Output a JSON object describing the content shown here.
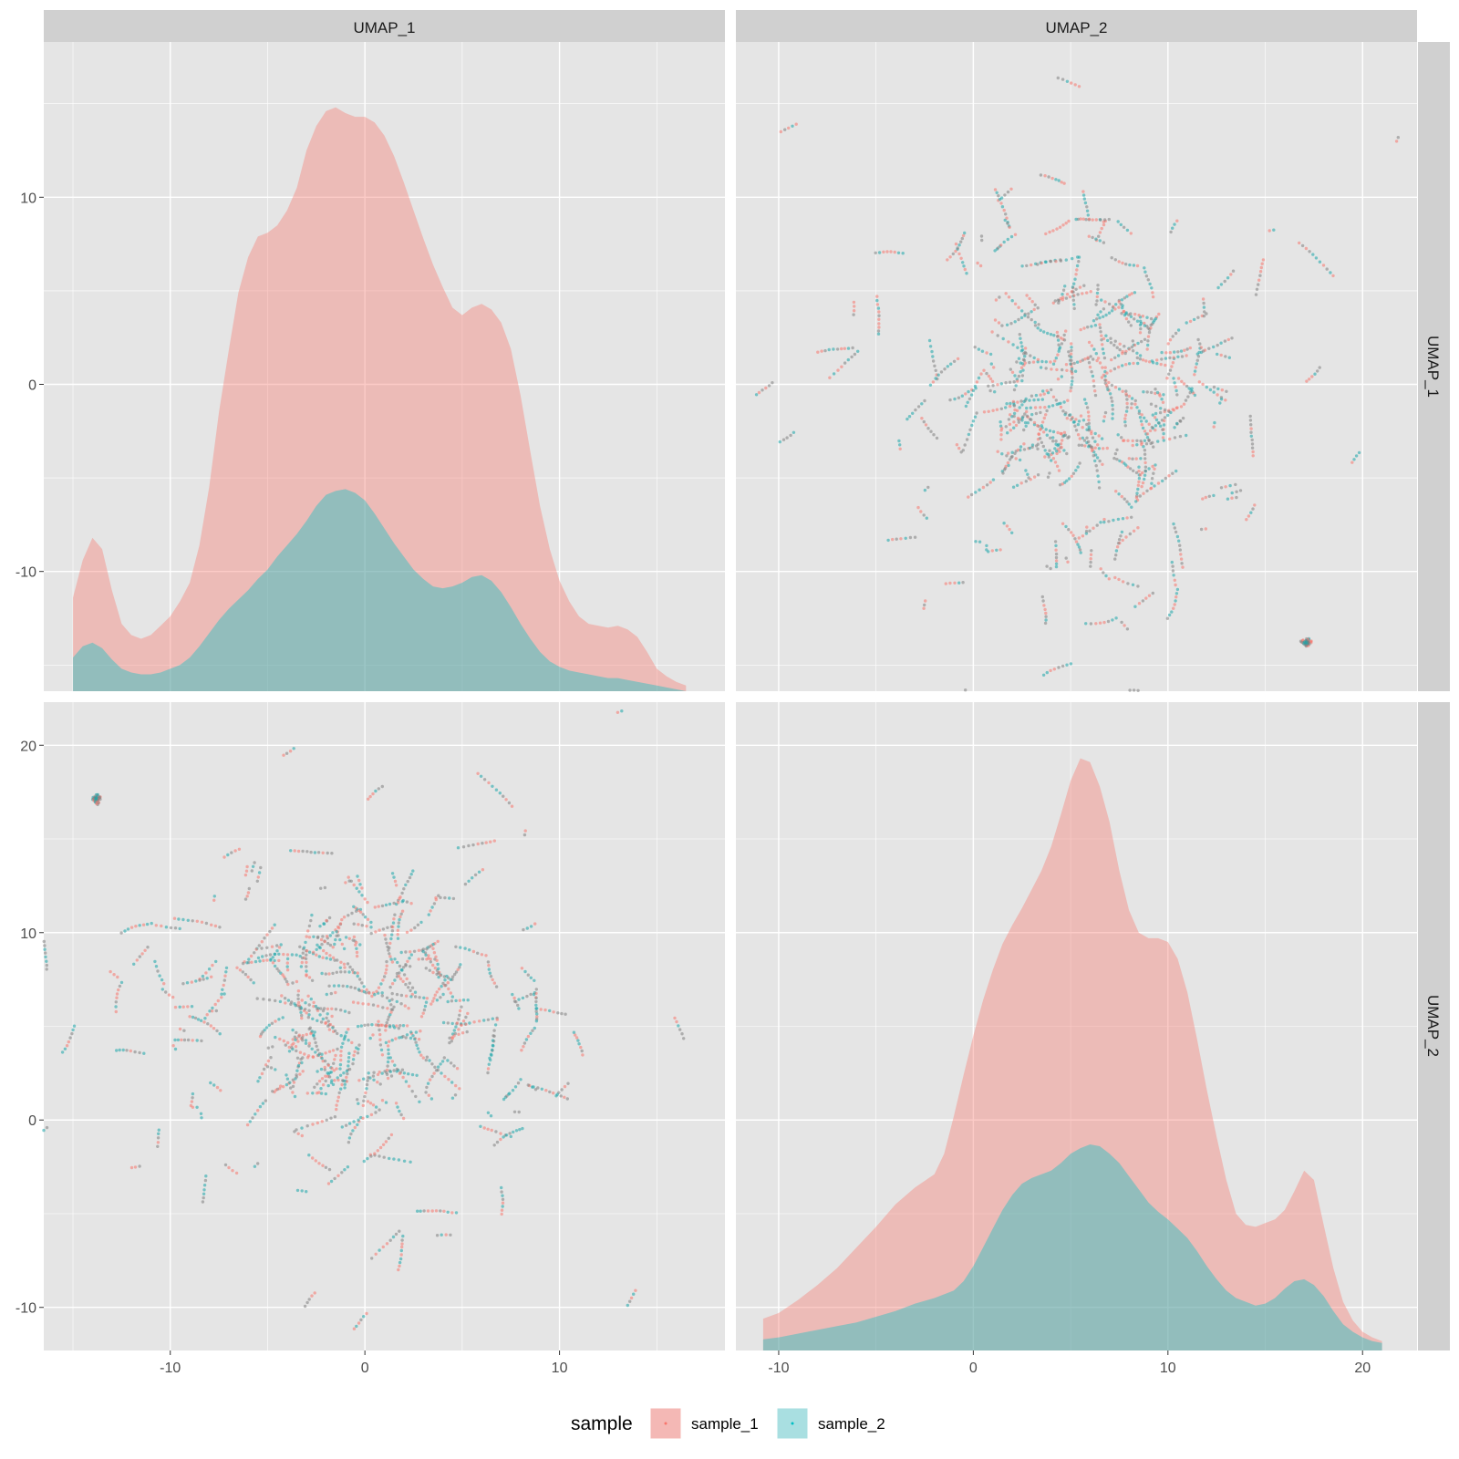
{
  "colors": {
    "panel_bg": "#e5e5e5",
    "grid": "#ffffff",
    "strip_bg": "#d0d0d0",
    "sample_1": "#f8766d",
    "sample_2": "#00bfc4"
  },
  "legend": {
    "title": "sample",
    "entries": [
      "sample_1",
      "sample_2"
    ],
    "position": "bottom"
  },
  "chart_data": [
    {
      "type": "area",
      "panel": "UMAP_1 x UMAP_1 (density)",
      "column_label": "UMAP_1",
      "row_label": "UMAP_1",
      "xlim": [
        -16.5,
        18.5
      ],
      "ylim": [
        -16.4,
        18.3
      ],
      "y_ticks": [
        -10,
        0,
        10
      ],
      "stacked": true,
      "series": [
        {
          "name": "sample_1",
          "x": [
            -15,
            -14.5,
            -14,
            -13.5,
            -13,
            -12.5,
            -12,
            -11.5,
            -11,
            -10.5,
            -10,
            -9.5,
            -9,
            -8.5,
            -8,
            -7.5,
            -7,
            -6.5,
            -6,
            -5.5,
            -5,
            -4.5,
            -4,
            -3.5,
            -3,
            -2.5,
            -2,
            -1.5,
            -1,
            -0.5,
            0,
            0.5,
            1,
            1.5,
            2,
            2.5,
            3,
            3.5,
            4,
            4.5,
            5,
            5.5,
            6,
            6.5,
            7,
            7.5,
            8,
            8.5,
            9,
            9.5,
            10,
            10.5,
            11,
            11.5,
            12,
            12.5,
            13,
            13.5,
            14,
            14.5,
            15,
            15.5,
            16,
            16.5
          ],
          "top": [
            -11.4,
            -9.4,
            -8.2,
            -8.8,
            -11.0,
            -12.8,
            -13.4,
            -13.6,
            -13.4,
            -12.9,
            -12.4,
            -11.6,
            -10.6,
            -8.6,
            -5.5,
            -1.5,
            1.8,
            4.9,
            6.8,
            7.9,
            8.1,
            8.5,
            9.3,
            10.5,
            12.5,
            13.8,
            14.6,
            14.8,
            14.5,
            14.3,
            14.3,
            14.0,
            13.3,
            12.2,
            10.8,
            9.3,
            7.8,
            6.4,
            5.2,
            4.1,
            3.7,
            4.1,
            4.3,
            4.0,
            3.3,
            1.9,
            -0.6,
            -3.6,
            -6.5,
            -8.8,
            -10.5,
            -11.6,
            -12.4,
            -12.8,
            -12.9,
            -13.0,
            -12.9,
            -13.1,
            -13.5,
            -14.3,
            -15.2,
            -15.6,
            -15.9,
            -16.1
          ]
        },
        {
          "name": "sample_2",
          "x": [
            -15,
            -14.5,
            -14,
            -13.5,
            -13,
            -12.5,
            -12,
            -11.5,
            -11,
            -10.5,
            -10,
            -9.5,
            -9,
            -8.5,
            -8,
            -7.5,
            -7,
            -6.5,
            -6,
            -5.5,
            -5,
            -4.5,
            -4,
            -3.5,
            -3,
            -2.5,
            -2,
            -1.5,
            -1,
            -0.5,
            0,
            0.5,
            1,
            1.5,
            2,
            2.5,
            3,
            3.5,
            4,
            4.5,
            5,
            5.5,
            6,
            6.5,
            7,
            7.5,
            8,
            8.5,
            9,
            9.5,
            10,
            10.5,
            11,
            11.5,
            12,
            12.5,
            13,
            13.5,
            14,
            14.5,
            15,
            15.5,
            16,
            16.5
          ],
          "top": [
            -14.6,
            -14.0,
            -13.8,
            -14.1,
            -14.7,
            -15.2,
            -15.4,
            -15.5,
            -15.5,
            -15.4,
            -15.2,
            -15.0,
            -14.6,
            -14.0,
            -13.3,
            -12.6,
            -12.0,
            -11.5,
            -11.0,
            -10.4,
            -9.9,
            -9.2,
            -8.6,
            -8.0,
            -7.3,
            -6.5,
            -5.9,
            -5.7,
            -5.6,
            -5.8,
            -6.2,
            -6.9,
            -7.7,
            -8.5,
            -9.2,
            -9.9,
            -10.4,
            -10.8,
            -10.9,
            -10.8,
            -10.6,
            -10.3,
            -10.2,
            -10.5,
            -11.1,
            -11.9,
            -12.8,
            -13.6,
            -14.3,
            -14.8,
            -15.1,
            -15.3,
            -15.4,
            -15.5,
            -15.6,
            -15.7,
            -15.7,
            -15.8,
            -15.9,
            -16.0,
            -16.1,
            -16.2,
            -16.3,
            -16.4
          ]
        }
      ]
    },
    {
      "type": "scatter",
      "panel": "UMAP_2 x UMAP_1",
      "column_label": "UMAP_2",
      "row_label": "UMAP_1",
      "x_variable": "UMAP_2",
      "y_variable": "UMAP_1",
      "xlim": [
        -12.2,
        22.8
      ],
      "ylim": [
        -16.4,
        18.3
      ],
      "cluster": {
        "x": 17.1,
        "y": -13.8
      },
      "approx_points": 1500
    },
    {
      "type": "scatter",
      "panel": "UMAP_1 x UMAP_2",
      "column_label": "UMAP_1",
      "row_label": "UMAP_2",
      "x_variable": "UMAP_1",
      "y_variable": "UMAP_2",
      "xlim": [
        -16.5,
        18.5
      ],
      "ylim": [
        -12.3,
        22.3
      ],
      "y_ticks": [
        -10,
        0,
        10,
        20
      ],
      "x_ticks": [
        -10,
        0,
        10
      ],
      "cluster": {
        "x": -13.8,
        "y": 17.1
      },
      "approx_points": 1500
    },
    {
      "type": "area",
      "panel": "UMAP_2 x UMAP_2 (density)",
      "column_label": "UMAP_2",
      "row_label": "UMAP_2",
      "xlim": [
        -12.2,
        22.8
      ],
      "ylim": [
        -12.3,
        22.3
      ],
      "x_ticks": [
        -10,
        0,
        10,
        20
      ],
      "stacked": true,
      "series": [
        {
          "name": "sample_1",
          "x": [
            -10.8,
            -10,
            -9,
            -8,
            -7,
            -6,
            -5,
            -4,
            -3,
            -2,
            -1.5,
            -1,
            -0.5,
            0,
            0.5,
            1,
            1.5,
            2,
            2.5,
            3,
            3.5,
            4,
            4.5,
            5,
            5.5,
            6,
            6.5,
            7,
            7.5,
            8,
            8.5,
            9,
            9.5,
            10,
            10.5,
            11,
            11.5,
            12,
            12.5,
            13,
            13.5,
            14,
            14.5,
            15,
            15.5,
            16,
            16.5,
            17,
            17.5,
            18,
            18.5,
            19,
            19.5,
            20,
            20.5,
            21
          ],
          "top": [
            -10.6,
            -10.3,
            -9.6,
            -8.8,
            -7.9,
            -6.8,
            -5.7,
            -4.5,
            -3.6,
            -2.9,
            -1.8,
            0.2,
            2.4,
            4.5,
            6.4,
            8.0,
            9.4,
            10.4,
            11.3,
            12.3,
            13.3,
            14.6,
            16.3,
            18.1,
            19.3,
            19.1,
            17.8,
            15.9,
            13.3,
            11.2,
            10.0,
            9.7,
            9.7,
            9.5,
            8.6,
            6.8,
            4.3,
            1.6,
            -0.9,
            -3.2,
            -5.0,
            -5.6,
            -5.7,
            -5.5,
            -5.3,
            -4.8,
            -3.8,
            -2.7,
            -3.2,
            -5.6,
            -7.9,
            -9.7,
            -10.7,
            -11.3,
            -11.6,
            -11.8
          ]
        },
        {
          "name": "sample_2",
          "x": [
            -10.8,
            -10,
            -9,
            -8,
            -7,
            -6,
            -5,
            -4,
            -3,
            -2,
            -1.5,
            -1,
            -0.5,
            0,
            0.5,
            1,
            1.5,
            2,
            2.5,
            3,
            3.5,
            4,
            4.5,
            5,
            5.5,
            6,
            6.5,
            7,
            7.5,
            8,
            8.5,
            9,
            9.5,
            10,
            10.5,
            11,
            11.5,
            12,
            12.5,
            13,
            13.5,
            14,
            14.5,
            15,
            15.5,
            16,
            16.5,
            17,
            17.5,
            18,
            18.5,
            19,
            19.5,
            20,
            20.5,
            21
          ],
          "top": [
            -11.7,
            -11.6,
            -11.4,
            -11.2,
            -11.0,
            -10.8,
            -10.5,
            -10.2,
            -9.8,
            -9.5,
            -9.3,
            -9.1,
            -8.6,
            -7.8,
            -6.8,
            -5.8,
            -4.8,
            -4.0,
            -3.4,
            -3.1,
            -2.9,
            -2.7,
            -2.3,
            -1.8,
            -1.5,
            -1.3,
            -1.4,
            -1.8,
            -2.3,
            -3.0,
            -3.7,
            -4.4,
            -4.9,
            -5.3,
            -5.8,
            -6.3,
            -7.0,
            -7.8,
            -8.5,
            -9.1,
            -9.5,
            -9.7,
            -9.9,
            -9.8,
            -9.5,
            -9.0,
            -8.6,
            -8.5,
            -8.8,
            -9.4,
            -10.2,
            -10.9,
            -11.3,
            -11.6,
            -11.8,
            -11.9
          ]
        }
      ]
    }
  ]
}
